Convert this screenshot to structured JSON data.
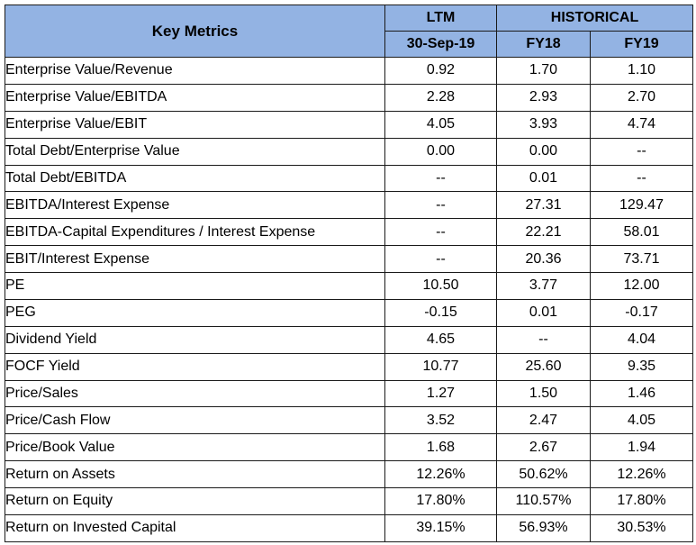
{
  "header": {
    "title": "Key Metrics",
    "ltm": "LTM",
    "historical": "HISTORICAL",
    "ltm_date": "30-Sep-19",
    "fy18": "FY18",
    "fy19": "FY19"
  },
  "rows": [
    {
      "label": "Enterprise Value/Revenue",
      "ltm": "0.92",
      "fy18": "1.70",
      "fy19": "1.10"
    },
    {
      "label": "Enterprise Value/EBITDA",
      "ltm": "2.28",
      "fy18": "2.93",
      "fy19": "2.70"
    },
    {
      "label": "Enterprise Value/EBIT",
      "ltm": "4.05",
      "fy18": "3.93",
      "fy19": "4.74"
    },
    {
      "label": "Total Debt/Enterprise Value",
      "ltm": "0.00",
      "fy18": "0.00",
      "fy19": "--"
    },
    {
      "label": "Total Debt/EBITDA",
      "ltm": "--",
      "fy18": "0.01",
      "fy19": "--"
    },
    {
      "label": "EBITDA/Interest Expense",
      "ltm": "--",
      "fy18": "27.31",
      "fy19": "129.47"
    },
    {
      "label": "EBITDA-Capital Expenditures / Interest Expense",
      "ltm": "--",
      "fy18": "22.21",
      "fy19": "58.01"
    },
    {
      "label": "EBIT/Interest Expense",
      "ltm": "--",
      "fy18": "20.36",
      "fy19": "73.71"
    },
    {
      "label": "PE",
      "ltm": "10.50",
      "fy18": "3.77",
      "fy19": "12.00"
    },
    {
      "label": "PEG",
      "ltm": "-0.15",
      "fy18": "0.01",
      "fy19": "-0.17"
    },
    {
      "label": "Dividend Yield",
      "ltm": "4.65",
      "fy18": "--",
      "fy19": "4.04"
    },
    {
      "label": "FOCF Yield",
      "ltm": "10.77",
      "fy18": "25.60",
      "fy19": "9.35"
    },
    {
      "label": "Price/Sales",
      "ltm": "1.27",
      "fy18": "1.50",
      "fy19": "1.46"
    },
    {
      "label": "Price/Cash Flow",
      "ltm": "3.52",
      "fy18": "2.47",
      "fy19": "4.05"
    },
    {
      "label": "Price/Book Value",
      "ltm": "1.68",
      "fy18": "2.67",
      "fy19": "1.94"
    },
    {
      "label": "Return on Assets",
      "ltm": "12.26%",
      "fy18": "50.62%",
      "fy19": "12.26%"
    },
    {
      "label": "Return on Equity",
      "ltm": "17.80%",
      "fy18": "110.57%",
      "fy19": "17.80%"
    },
    {
      "label": "Return on Invested Capital",
      "ltm": "39.15%",
      "fy18": "56.93%",
      "fy19": "30.53%"
    }
  ]
}
